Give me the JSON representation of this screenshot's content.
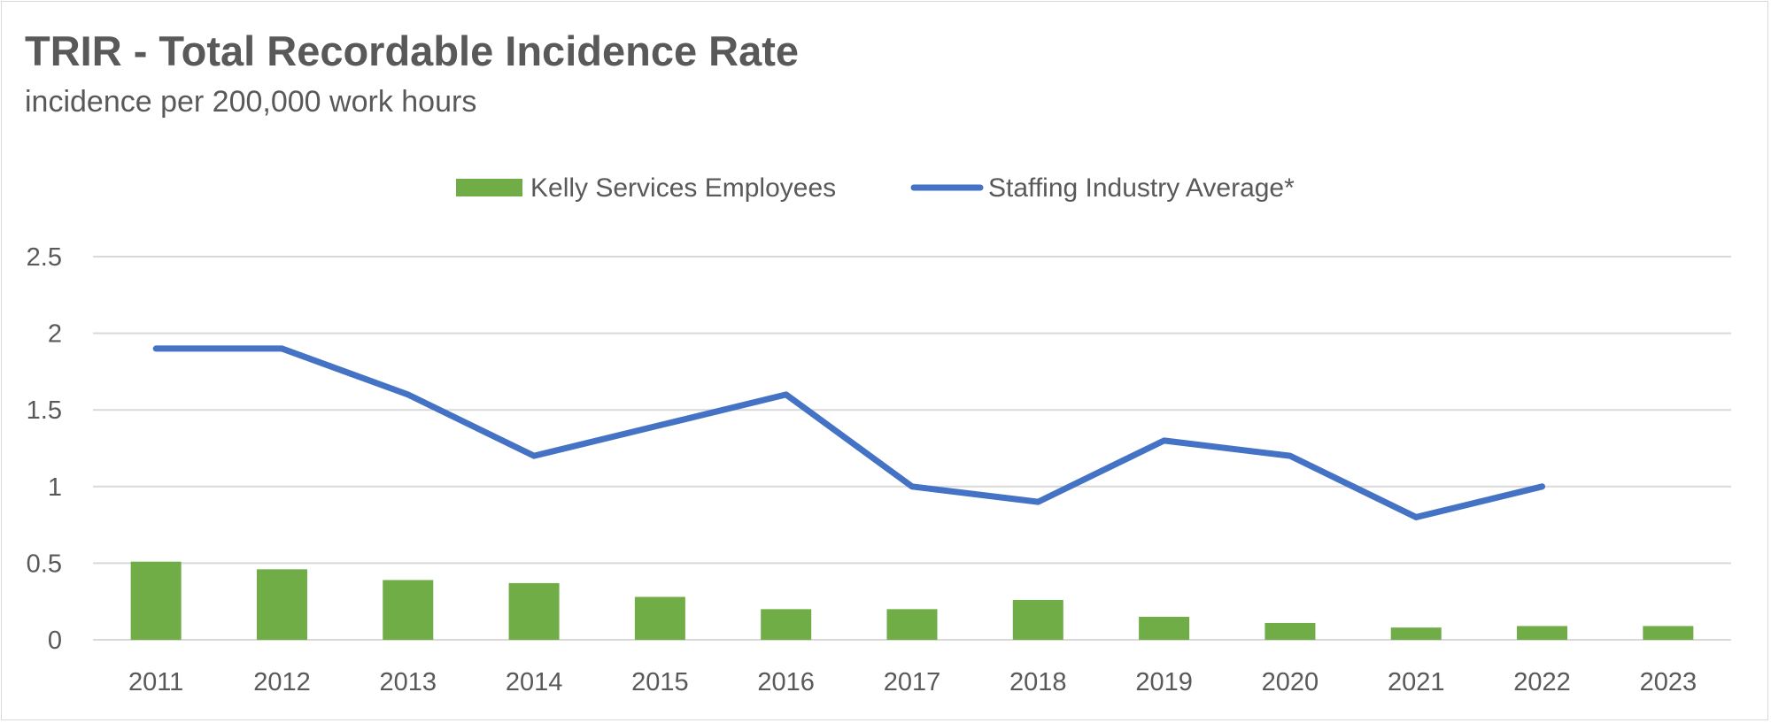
{
  "title": "TRIR - Total Recordable Incidence Rate",
  "subtitle": "incidence per 200,000 work hours",
  "chart_data": {
    "type": "bar",
    "categories": [
      "2011",
      "2012",
      "2013",
      "2014",
      "2015",
      "2016",
      "2017",
      "2018",
      "2019",
      "2020",
      "2021",
      "2022",
      "2023"
    ],
    "series": [
      {
        "name": "Kelly Services Employees",
        "type": "bar",
        "color": "#70ad47",
        "values": [
          0.51,
          0.46,
          0.39,
          0.37,
          0.28,
          0.2,
          0.2,
          0.26,
          0.15,
          0.11,
          0.08,
          0.09,
          0.09
        ]
      },
      {
        "name": "Staffing Industry Average*",
        "type": "line",
        "color": "#4472c4",
        "values": [
          1.9,
          1.9,
          1.6,
          1.2,
          1.4,
          1.6,
          1.0,
          0.9,
          1.3,
          1.2,
          0.8,
          1.0,
          null
        ]
      }
    ],
    "y_ticks": [
      "0",
      "0.5",
      "1",
      "1.5",
      "2",
      "2.5"
    ],
    "ylim": [
      0,
      2.5
    ],
    "grid": true,
    "legend_position": "top-center",
    "gridline_color": "#d9d9d9"
  }
}
